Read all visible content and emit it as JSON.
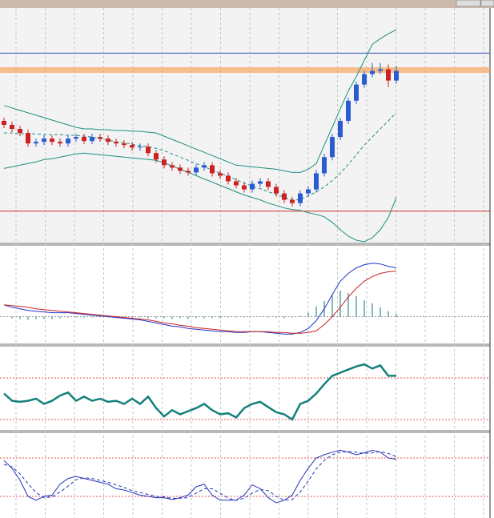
{
  "chart_data": [
    {
      "type": "candlestick",
      "ylim": [
        0,
        288
      ],
      "up_color": "#2a5bd0",
      "down_color": "#cc2222",
      "open": [
        150,
        145,
        140,
        135,
        122,
        124,
        128,
        124,
        122,
        128,
        130,
        125,
        130,
        128,
        124,
        122,
        120,
        117,
        118,
        110,
        102,
        95,
        92,
        88,
        86,
        92,
        95,
        85,
        82,
        75,
        70,
        65,
        72,
        75,
        68,
        60,
        52,
        48,
        60,
        65,
        85,
        105,
        130,
        150,
        175,
        195,
        208,
        212,
        214,
        200
      ],
      "high": [
        154,
        149,
        144,
        139,
        128,
        132,
        132,
        128,
        132,
        134,
        134,
        134,
        134,
        132,
        128,
        126,
        124,
        122,
        122,
        114,
        106,
        99,
        96,
        92,
        96,
        99,
        99,
        89,
        86,
        79,
        74,
        76,
        79,
        79,
        72,
        64,
        56,
        64,
        69,
        89,
        109,
        134,
        154,
        179,
        199,
        212,
        222,
        222,
        220,
        218
      ],
      "low": [
        141,
        136,
        131,
        118,
        118,
        120,
        120,
        118,
        118,
        124,
        121,
        121,
        124,
        120,
        118,
        116,
        113,
        113,
        106,
        98,
        91,
        88,
        84,
        82,
        82,
        88,
        81,
        78,
        71,
        66,
        61,
        61,
        68,
        64,
        56,
        48,
        44,
        44,
        56,
        61,
        81,
        101,
        126,
        146,
        171,
        191,
        204,
        208,
        192,
        196
      ],
      "close": [
        145,
        140,
        135,
        122,
        124,
        128,
        124,
        122,
        128,
        130,
        125,
        130,
        128,
        124,
        122,
        120,
        117,
        118,
        110,
        102,
        95,
        92,
        88,
        86,
        92,
        95,
        85,
        82,
        75,
        70,
        65,
        72,
        75,
        68,
        60,
        52,
        48,
        60,
        65,
        85,
        105,
        130,
        150,
        175,
        195,
        208,
        212,
        214,
        200,
        212
      ],
      "series": [
        {
          "kind": "solid",
          "color": "#1f8f80",
          "values": [
            169,
            166,
            163,
            160,
            157,
            154,
            151,
            148,
            145,
            142,
            140,
            140,
            139,
            139,
            138,
            138,
            137,
            137,
            136,
            135,
            131,
            127,
            123,
            119,
            115,
            111,
            107,
            103,
            99,
            95,
            94,
            93,
            92,
            91,
            90,
            88,
            86,
            86,
            90,
            97,
            120,
            142,
            165,
            187,
            205,
            225,
            245,
            252,
            258,
            263
          ]
        },
        {
          "kind": "dashed",
          "color": "#1f8f80",
          "values": [
            135,
            135,
            134,
            134,
            134,
            133,
            133,
            133,
            132,
            132,
            131,
            130,
            128,
            126,
            124,
            123,
            121,
            119,
            118,
            116,
            113,
            109,
            105,
            101,
            97,
            93,
            89,
            85,
            81,
            77,
            73,
            69,
            66,
            62,
            59,
            55,
            52,
            52,
            57,
            62,
            68,
            76,
            85,
            96,
            108,
            120,
            130,
            140,
            150,
            160
          ]
        },
        {
          "kind": "solid",
          "color": "#1f8f80",
          "values": [
            91,
            93,
            95,
            97,
            99,
            102,
            103,
            105,
            107,
            109,
            110,
            109,
            108,
            107,
            106,
            105,
            104,
            103,
            102,
            101,
            98,
            94,
            90,
            86,
            82,
            78,
            74,
            70,
            66,
            62,
            58,
            55,
            52,
            48,
            45,
            42,
            40,
            39,
            36,
            34,
            31,
            24,
            15,
            7,
            2,
            0,
            5,
            15,
            30,
            55
          ]
        }
      ],
      "hlines": [
        {
          "value": 234,
          "color": "#3050b0",
          "thick": false
        },
        {
          "value": 213,
          "color": "#f5a460",
          "thick": true
        },
        {
          "value": 38,
          "color": "#d03030",
          "thick": false
        }
      ]
    },
    {
      "type": "macd",
      "ylim": [
        -33,
        87
      ],
      "series": [
        {
          "kind": "bar",
          "color": "#2f8c8c",
          "values": [
            0,
            -2,
            -3,
            -4,
            -3,
            -3,
            -3,
            -2,
            -1,
            -1,
            -1,
            -1,
            -1,
            -1,
            -1,
            -1,
            -1,
            -1,
            -2,
            -2,
            -2,
            -3,
            -2,
            -3,
            -2,
            -2,
            -2,
            -2,
            -1,
            -1,
            -1,
            0,
            0,
            -1,
            -1,
            -2,
            -1,
            1,
            5,
            13,
            20,
            28,
            33,
            30,
            26,
            21,
            17,
            12,
            7,
            4
          ]
        },
        {
          "kind": "solid",
          "color": "#2233cc",
          "values": [
            15,
            12,
            10,
            8,
            7,
            6,
            5,
            5,
            5,
            4,
            3,
            2,
            1,
            0,
            -1,
            -2,
            -3,
            -4,
            -6,
            -8,
            -10,
            -12,
            -13,
            -15,
            -16,
            -17,
            -18,
            -19,
            -19,
            -20,
            -20,
            -19,
            -19,
            -20,
            -21,
            -22,
            -22,
            -20,
            -15,
            -5,
            10,
            28,
            45,
            55,
            62,
            66,
            68,
            67,
            64,
            62
          ]
        },
        {
          "kind": "solid",
          "color": "#cc2222",
          "values": [
            15,
            14,
            13,
            12,
            10,
            9,
            8,
            7,
            6,
            5,
            4,
            3,
            2,
            1,
            0,
            -1,
            -2,
            -3,
            -4,
            -6,
            -8,
            -9,
            -11,
            -12,
            -14,
            -15,
            -16,
            -17,
            -18,
            -19,
            -19,
            -19,
            -19,
            -19,
            -20,
            -20,
            -21,
            -21,
            -20,
            -18,
            -10,
            0,
            12,
            25,
            36,
            45,
            51,
            55,
            57,
            58
          ]
        }
      ],
      "hlines": [
        {
          "value": 0,
          "color": "#999999",
          "thick": false
        }
      ]
    },
    {
      "type": "line",
      "ylim": [
        21.5,
        98.5
      ],
      "series": [
        {
          "kind": "bold",
          "color": "#13807a",
          "values": [
            55,
            48,
            47,
            48,
            50,
            45,
            48,
            53,
            56,
            48,
            52,
            48,
            50,
            47,
            48,
            45,
            50,
            45,
            52,
            41,
            33,
            39,
            35,
            38,
            41,
            45,
            39,
            35,
            36,
            32,
            41,
            45,
            47,
            42,
            37,
            35,
            30,
            45,
            48,
            55,
            64,
            72,
            75,
            78,
            81,
            83,
            79,
            82,
            72,
            72
          ]
        }
      ],
      "hlines": [
        {
          "value": 70,
          "color": "#e05050",
          "thick": false
        },
        {
          "value": 30,
          "color": "#e05050",
          "thick": false
        }
      ]
    },
    {
      "type": "line",
      "ylim": [
        -11.25,
        116.25
      ],
      "series": [
        {
          "kind": "solid",
          "color": "#2233bb",
          "values": [
            76,
            64,
            45,
            20,
            14,
            20,
            22,
            39,
            48,
            51,
            48,
            45,
            42,
            39,
            32,
            30,
            26,
            22,
            20,
            18,
            18,
            15,
            18,
            22,
            35,
            39,
            22,
            14,
            14,
            14,
            22,
            38,
            32,
            18,
            10,
            14,
            22,
            45,
            64,
            80,
            85,
            89,
            92,
            89,
            85,
            88,
            92,
            89,
            80,
            78
          ]
        },
        {
          "kind": "dashed",
          "color": "#2233bb",
          "values": [
            70,
            66,
            55,
            40,
            26,
            18,
            19,
            27,
            36,
            46,
            49,
            48,
            45,
            42,
            38,
            34,
            29,
            26,
            23,
            20,
            19,
            17,
            17,
            18,
            25,
            32,
            32,
            25,
            17,
            14,
            17,
            25,
            31,
            29,
            20,
            14,
            15,
            27,
            44,
            63,
            76,
            85,
            89,
            90,
            89,
            87,
            88,
            90,
            87,
            82
          ]
        }
      ],
      "hlines": [
        {
          "value": 80,
          "color": "#e05050",
          "thick": false
        },
        {
          "value": 20,
          "color": "#e05050",
          "thick": false
        }
      ]
    }
  ]
}
